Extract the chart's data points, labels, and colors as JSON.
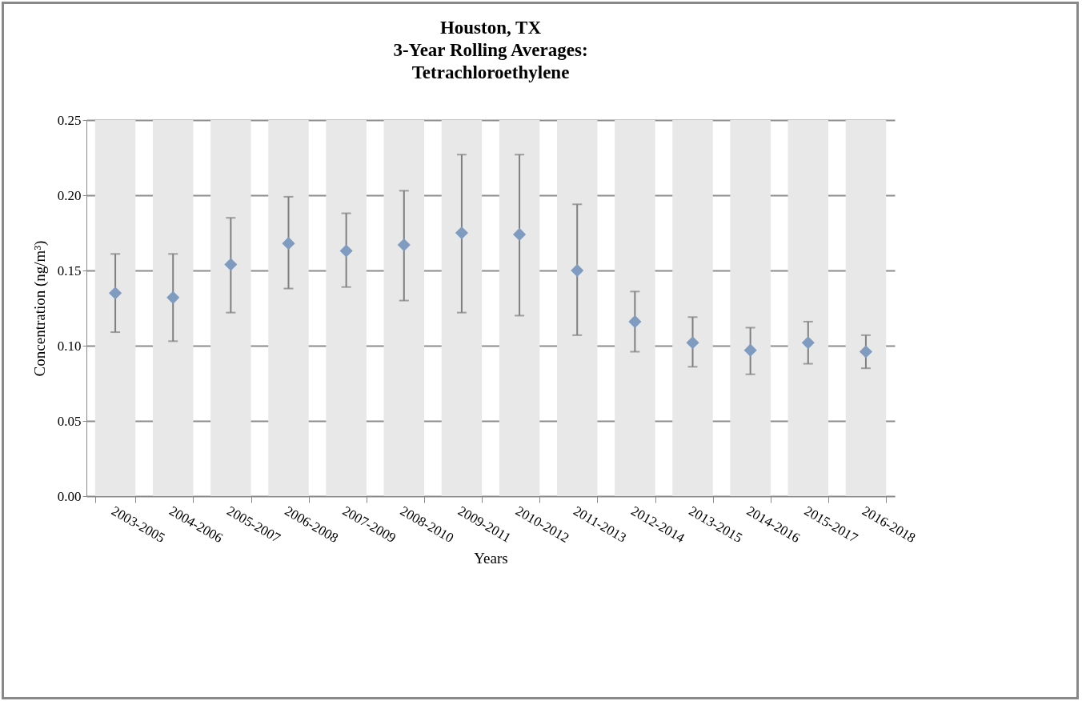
{
  "chart_data": {
    "type": "scatter",
    "title": "Houston, TX\n3-Year Rolling Averages:\nTetrachloroethylene",
    "xlabel": "Years",
    "ylabel": "Concentration (ng/m³)",
    "categories": [
      "2003-2005",
      "2004-2006",
      "2005-2007",
      "2006-2008",
      "2007-2009",
      "2008-2010",
      "2009-2011",
      "2010-2012",
      "2011-2013",
      "2012-2014",
      "2013-2015",
      "2014-2016",
      "2015-2017",
      "2016-2018"
    ],
    "series": [
      {
        "type": "bar",
        "color": "#e8e8e8",
        "values": [
          0.25,
          0.25,
          0.25,
          0.25,
          0.25,
          0.25,
          0.25,
          0.25,
          0.25,
          0.25,
          0.25,
          0.25,
          0.25,
          0.25
        ]
      },
      {
        "color": "#7f9cc0",
        "marker": "diamond",
        "values": [
          0.135,
          0.132,
          0.154,
          0.168,
          0.163,
          0.167,
          0.175,
          0.174,
          0.15,
          0.116,
          0.102,
          0.097,
          0.102,
          0.096
        ],
        "errors": [
          [
            0.109,
            0.161
          ],
          [
            0.103,
            0.161
          ],
          [
            0.122,
            0.185
          ],
          [
            0.138,
            0.199
          ],
          [
            0.139,
            0.188
          ],
          [
            0.13,
            0.203
          ],
          [
            0.122,
            0.227
          ],
          [
            0.12,
            0.227
          ],
          [
            0.107,
            0.194
          ],
          [
            0.096,
            0.136
          ],
          [
            0.086,
            0.119
          ],
          [
            0.081,
            0.112
          ],
          [
            0.088,
            0.116
          ],
          [
            0.085,
            0.107
          ]
        ]
      }
    ],
    "ylim": [
      0,
      0.25
    ],
    "yticks": [
      {
        "value": 0,
        "label": "0.00"
      },
      {
        "value": 0.05,
        "label": "0.05"
      },
      {
        "value": 0.1,
        "label": "0.10"
      },
      {
        "value": 0.15,
        "label": "0.15"
      },
      {
        "value": 0.2,
        "label": "0.20"
      },
      {
        "value": 0.25,
        "label": "0.25"
      }
    ],
    "grid": "y"
  }
}
